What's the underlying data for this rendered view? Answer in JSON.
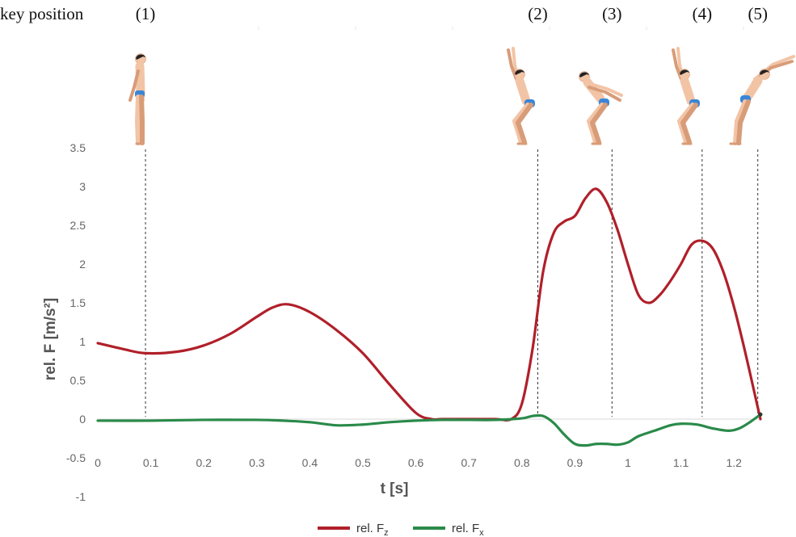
{
  "header": {
    "key_position_label": "key position"
  },
  "chart_data": {
    "type": "line",
    "xlabel": "t [s]",
    "ylabel": "rel. F  [m/s²]",
    "xlim": [
      0,
      1.25
    ],
    "ylim": [
      -1,
      3.5
    ],
    "x_ticks": [
      "0",
      "0.1",
      "0.2",
      "0.3",
      "0.4",
      "0.5",
      "0.6",
      "0.7",
      "0.8",
      "0.9",
      "1",
      "1.1",
      "1.2"
    ],
    "y_ticks": [
      "3.5",
      "3",
      "2.5",
      "2",
      "1.5",
      "1",
      "0.5",
      "0",
      "-0.5",
      "-1"
    ],
    "key_positions": [
      {
        "label": "(1)",
        "t": 0.09
      },
      {
        "label": "(2)",
        "t": 0.83
      },
      {
        "label": "(3)",
        "t": 0.97
      },
      {
        "label": "(4)",
        "t": 1.14
      },
      {
        "label": "(5)",
        "t": 1.245
      }
    ],
    "series": [
      {
        "name": "rel. Fz",
        "legend_main": "rel. F",
        "legend_sub": "z",
        "color": "#b0202a",
        "x": [
          0,
          0.05,
          0.09,
          0.15,
          0.2,
          0.25,
          0.3,
          0.33,
          0.36,
          0.4,
          0.45,
          0.5,
          0.55,
          0.6,
          0.63,
          0.65,
          0.7,
          0.75,
          0.78,
          0.8,
          0.82,
          0.84,
          0.86,
          0.88,
          0.9,
          0.92,
          0.94,
          0.96,
          0.98,
          1.0,
          1.02,
          1.04,
          1.06,
          1.08,
          1.1,
          1.12,
          1.14,
          1.16,
          1.18,
          1.2,
          1.22,
          1.24,
          1.25
        ],
        "values": [
          0.98,
          0.9,
          0.85,
          0.87,
          0.95,
          1.1,
          1.32,
          1.44,
          1.48,
          1.38,
          1.15,
          0.85,
          0.45,
          0.08,
          0.0,
          0.0,
          0.0,
          0.0,
          0.0,
          0.2,
          0.9,
          1.9,
          2.4,
          2.55,
          2.62,
          2.85,
          2.97,
          2.8,
          2.45,
          2.0,
          1.6,
          1.5,
          1.6,
          1.78,
          2.0,
          2.25,
          2.3,
          2.2,
          1.9,
          1.45,
          0.9,
          0.3,
          0.0
        ]
      },
      {
        "name": "rel. Fx",
        "legend_main": "rel. F",
        "legend_sub": "x",
        "color": "#2a8a4a",
        "x": [
          0,
          0.1,
          0.2,
          0.3,
          0.35,
          0.4,
          0.45,
          0.5,
          0.55,
          0.6,
          0.65,
          0.7,
          0.75,
          0.8,
          0.82,
          0.84,
          0.86,
          0.88,
          0.9,
          0.92,
          0.94,
          0.96,
          0.98,
          1.0,
          1.02,
          1.05,
          1.08,
          1.1,
          1.13,
          1.16,
          1.19,
          1.21,
          1.23,
          1.25
        ],
        "values": [
          -0.02,
          -0.02,
          -0.01,
          -0.01,
          -0.02,
          -0.04,
          -0.08,
          -0.07,
          -0.04,
          -0.02,
          -0.01,
          -0.01,
          -0.01,
          0.01,
          0.04,
          0.04,
          -0.05,
          -0.2,
          -0.32,
          -0.34,
          -0.32,
          -0.32,
          -0.33,
          -0.3,
          -0.22,
          -0.15,
          -0.08,
          -0.06,
          -0.07,
          -0.12,
          -0.15,
          -0.12,
          -0.04,
          0.06
        ]
      }
    ]
  }
}
